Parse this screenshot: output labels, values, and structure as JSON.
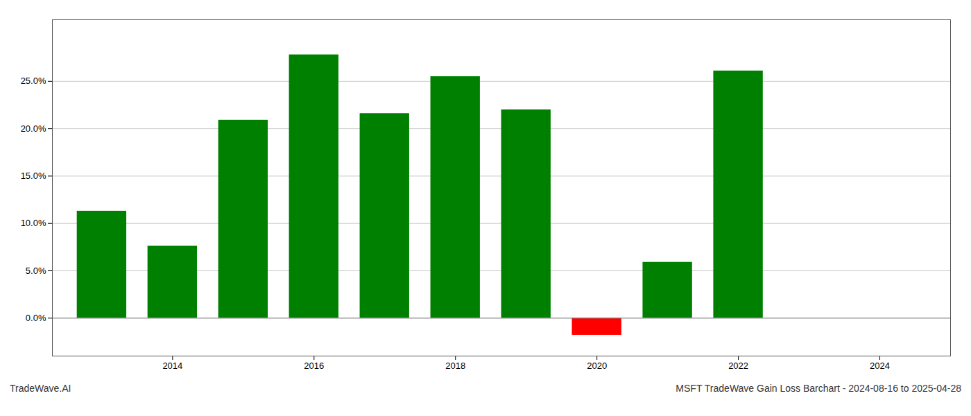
{
  "chart_data": {
    "type": "bar",
    "x": [
      2013,
      2014,
      2015,
      2016,
      2017,
      2018,
      2019,
      2020,
      2021,
      2022,
      2023
    ],
    "values": [
      0.113,
      0.076,
      0.209,
      0.278,
      0.216,
      0.255,
      0.22,
      -0.018,
      0.059,
      0.261,
      0.0
    ],
    "colors": [
      "#008000",
      "#008000",
      "#008000",
      "#008000",
      "#008000",
      "#008000",
      "#008000",
      "#ff0000",
      "#008000",
      "#008000",
      null
    ],
    "xlim": [
      2012.3,
      2025.0
    ],
    "xticks": [
      2014,
      2016,
      2018,
      2020,
      2022,
      2024
    ],
    "ylim": [
      -0.04,
      0.315
    ],
    "yticks": [
      {
        "value": 0.0,
        "label": "0.0%"
      },
      {
        "value": 0.05,
        "label": "5.0%"
      },
      {
        "value": 0.1,
        "label": "10.0%"
      },
      {
        "value": 0.15,
        "label": "15.0%"
      },
      {
        "value": 0.2,
        "label": "20.0%"
      },
      {
        "value": 0.25,
        "label": "25.0%"
      }
    ],
    "grid": true,
    "annotations": [
      "TradeWave.AI",
      "MSFT TradeWave Gain Loss Barchart - 2024-08-16 to 2025-04-28"
    ]
  }
}
